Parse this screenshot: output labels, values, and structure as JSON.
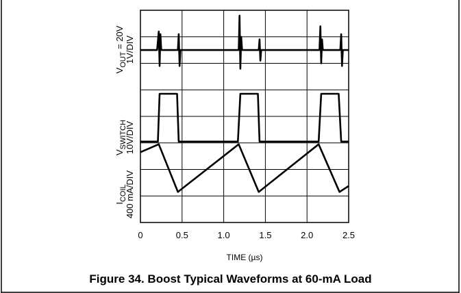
{
  "chart_data": {
    "type": "line",
    "title": "Figure 34. Boost Typical Waveforms at 60-mA Load",
    "xlabel": "TIME (µs)",
    "xlim": [
      0,
      2.5
    ],
    "xticks": [
      "0",
      "0.5",
      "1.0",
      "1.5",
      "2.0",
      "2.5"
    ],
    "grid": true,
    "panels": [
      {
        "name": "VOUT",
        "label_main": "V",
        "label_sub": "OUT",
        "label_rest": " = 20V",
        "scale": "1V/DIV",
        "series": [
          {
            "x": [
              0,
              0.2,
              0.22,
              0.23,
              0.24,
              0.25,
              0.45,
              0.46,
              0.47,
              0.48,
              1.18,
              1.19,
              1.2,
              1.21,
              1.22,
              1.42,
              1.43,
              1.44,
              1.45,
              2.15,
              2.16,
              2.17,
              2.18,
              2.19,
              2.4,
              2.41,
              2.42,
              2.43,
              2.5
            ],
            "y": [
              0,
              0,
              0.7,
              -0.6,
              0.6,
              0,
              0,
              0.6,
              -0.6,
              0,
              0,
              1.3,
              -0.7,
              0.5,
              0,
              0,
              0.4,
              -0.4,
              0,
              0,
              0.9,
              -0.5,
              0.4,
              0,
              0,
              0.6,
              -0.6,
              0,
              0
            ]
          }
        ]
      },
      {
        "name": "VSWITCH",
        "label_main": "V",
        "label_sub": "SWITCH",
        "label_rest": "",
        "scale": "10V/DIV",
        "series": [
          {
            "x": [
              0,
              0.21,
              0.23,
              0.44,
              0.46,
              1.17,
              1.2,
              1.41,
              1.43,
              2.14,
              2.17,
              2.38,
              2.41,
              2.5
            ],
            "y": [
              0,
              0,
              3,
              3,
              0,
              0,
              3,
              3,
              0,
              0,
              3,
              3,
              0,
              0
            ]
          }
        ]
      },
      {
        "name": "ICOIL",
        "label_main": "I",
        "label_sub": "COIL",
        "label_rest": "",
        "scale": "400 mA/DIV",
        "series": [
          {
            "x": [
              0,
              0.22,
              0.45,
              1.18,
              1.42,
              2.14,
              2.39,
              2.5
            ],
            "y": [
              2.2,
              2.6,
              0.2,
              2.6,
              0.2,
              2.6,
              0.2,
              0.5
            ]
          }
        ]
      }
    ]
  }
}
